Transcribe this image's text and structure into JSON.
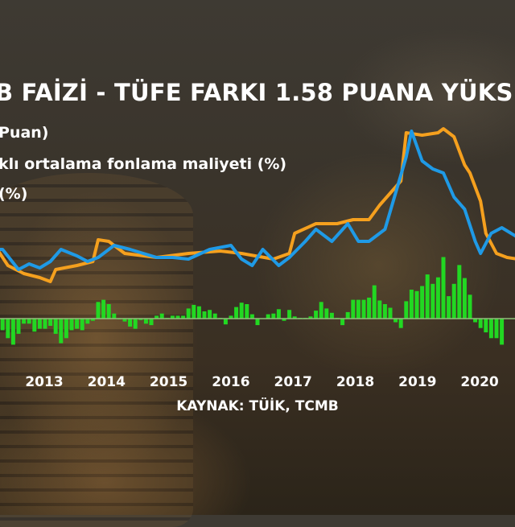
{
  "title": "B FAİZİ - TÜFE FARKI 1.58 PUANA YÜKS",
  "legend": [
    "Puan)",
    "klı ortalama fonlama maliyeti (%)",
    "(%)"
  ],
  "source": "KAYNAK: TÜİK, TCMB",
  "colors": {
    "funding_cost_line": "#f5a01e",
    "cpi_line": "#1f9ae6",
    "spread_bars": "#22d822",
    "background": "#3a3329"
  },
  "chart_data": {
    "type": "line+bar",
    "title": "B FAİZİ - TÜFE FARKI 1.58 PUANA YÜKS",
    "x_tick_labels": [
      "2013",
      "2014",
      "2015",
      "2016",
      "2017",
      "2018",
      "2019",
      "2020"
    ],
    "grid": false,
    "series": [
      {
        "name": "klı ortalama fonlama maliyeti (%)",
        "type": "line",
        "color": "#f5a01e",
        "points": [
          [
            "2012-03",
            10.0
          ],
          [
            "2012-06",
            7.0
          ],
          [
            "2012-09",
            6.0
          ],
          [
            "2012-12",
            5.5
          ],
          [
            "2013-02",
            5.0
          ],
          [
            "2013-03",
            6.5
          ],
          [
            "2013-07",
            7.0
          ],
          [
            "2013-10",
            7.5
          ],
          [
            "2013-11",
            10.2
          ],
          [
            "2014-01",
            10.0
          ],
          [
            "2014-04",
            8.5
          ],
          [
            "2014-10",
            8.0
          ],
          [
            "2015-04",
            8.5
          ],
          [
            "2015-10",
            8.8
          ],
          [
            "2016-02",
            8.5
          ],
          [
            "2016-08",
            7.8
          ],
          [
            "2016-11",
            8.5
          ],
          [
            "2016-12",
            11.0
          ],
          [
            "2017-04",
            12.2
          ],
          [
            "2017-08",
            12.2
          ],
          [
            "2017-11",
            12.7
          ],
          [
            "2018-02",
            12.7
          ],
          [
            "2018-04",
            14.5
          ],
          [
            "2018-06",
            16.0
          ],
          [
            "2018-08",
            17.5
          ],
          [
            "2018-09",
            23.5
          ],
          [
            "2018-12",
            23.2
          ],
          [
            "2019-03",
            23.5
          ],
          [
            "2019-04",
            24.0
          ],
          [
            "2019-06",
            23.0
          ],
          [
            "2019-08",
            19.5
          ],
          [
            "2019-09",
            18.5
          ],
          [
            "2019-11",
            15.0
          ],
          [
            "2019-12",
            11.0
          ],
          [
            "2020-02",
            8.5
          ],
          [
            "2020-04",
            8.0
          ],
          [
            "2020-06",
            7.8
          ]
        ]
      },
      {
        "name": "(%)",
        "type": "line",
        "color": "#1f9ae6",
        "points": [
          [
            "2012-03",
            9.0
          ],
          [
            "2012-05",
            9.0
          ],
          [
            "2012-08",
            6.5
          ],
          [
            "2012-10",
            7.2
          ],
          [
            "2012-12",
            6.7
          ],
          [
            "2013-02",
            7.5
          ],
          [
            "2013-04",
            9.0
          ],
          [
            "2013-07",
            8.2
          ],
          [
            "2013-09",
            7.5
          ],
          [
            "2013-11",
            8.0
          ],
          [
            "2014-02",
            9.5
          ],
          [
            "2014-05",
            9.0
          ],
          [
            "2014-10",
            8.0
          ],
          [
            "2015-01",
            8.0
          ],
          [
            "2015-04",
            7.8
          ],
          [
            "2015-08",
            9.0
          ],
          [
            "2015-12",
            9.5
          ],
          [
            "2016-02",
            7.8
          ],
          [
            "2016-04",
            7.0
          ],
          [
            "2016-06",
            9.0
          ],
          [
            "2016-09",
            7.0
          ],
          [
            "2016-11",
            8.0
          ],
          [
            "2017-02",
            10.0
          ],
          [
            "2017-04",
            11.5
          ],
          [
            "2017-07",
            10.0
          ],
          [
            "2017-10",
            12.2
          ],
          [
            "2017-12",
            10.0
          ],
          [
            "2018-02",
            10.0
          ],
          [
            "2018-05",
            11.5
          ],
          [
            "2018-07",
            16.0
          ],
          [
            "2018-09",
            20.5
          ],
          [
            "2018-10",
            23.7
          ],
          [
            "2018-12",
            20.0
          ],
          [
            "2019-02",
            19.0
          ],
          [
            "2019-04",
            18.5
          ],
          [
            "2019-06",
            15.5
          ],
          [
            "2019-08",
            14.0
          ],
          [
            "2019-10",
            10.0
          ],
          [
            "2019-11",
            8.5
          ],
          [
            "2020-01",
            11.0
          ],
          [
            "2020-03",
            11.7
          ],
          [
            "2020-06",
            10.5
          ]
        ]
      },
      {
        "name": "Puan)",
        "type": "bar",
        "color": "#22d822",
        "start": "2012-05",
        "values": [
          -1.6,
          -2.7,
          -3.6,
          -2.1,
          -0.7,
          -0.7,
          -1.8,
          -1.4,
          -1.4,
          -1.0,
          -2.1,
          -3.4,
          -2.7,
          -1.6,
          -1.4,
          -1.6,
          -0.7,
          -0.3,
          2.3,
          2.6,
          2.0,
          0.7,
          -0.1,
          -0.4,
          -1.1,
          -1.4,
          -0.2,
          -0.7,
          -0.9,
          0.4,
          0.7,
          0.1,
          0.4,
          0.4,
          0.4,
          1.4,
          1.9,
          1.7,
          1.0,
          1.2,
          0.7,
          0.1,
          -0.8,
          0.4,
          1.6,
          2.2,
          2.0,
          0.6,
          -0.9,
          0.0,
          0.6,
          0.7,
          1.3,
          -0.3,
          1.2,
          0.3,
          0.1,
          0.1,
          0.3,
          1.1,
          2.3,
          1.4,
          0.8,
          0.1,
          -0.9,
          0.9,
          2.6,
          2.6,
          2.6,
          2.9,
          4.6,
          2.5,
          2.0,
          1.5,
          -0.5,
          -1.3,
          2.4,
          4.0,
          3.8,
          4.5,
          6.1,
          4.8,
          5.7,
          8.5,
          3.1,
          4.8,
          7.4,
          5.6,
          3.3,
          -0.5,
          -1.3,
          -1.9,
          -2.7,
          -2.7,
          -3.6
        ]
      }
    ]
  }
}
